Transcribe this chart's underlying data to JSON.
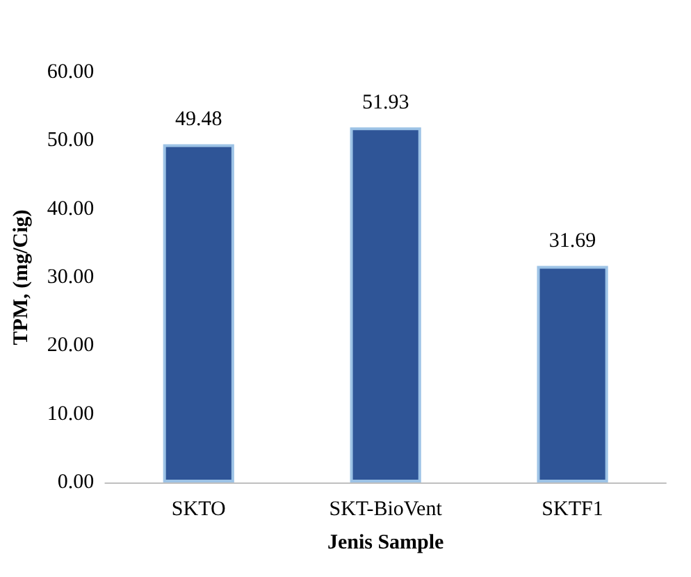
{
  "chart_data": {
    "type": "bar",
    "xlabel": "Jenis Sample",
    "ylabel": "TPM, (mg/Cig)",
    "categories": [
      "SKTO",
      "SKT-BioVent",
      "SKTF1"
    ],
    "values": [
      49.48,
      51.93,
      31.69
    ],
    "color": "#2f5597",
    "ylim": [
      0,
      60
    ],
    "yticks": [
      {
        "value": 0,
        "label": "0.00"
      },
      {
        "value": 10,
        "label": "10.00"
      },
      {
        "value": 20,
        "label": "20.00"
      },
      {
        "value": 30,
        "label": "30.00"
      },
      {
        "value": 40,
        "label": "40.00"
      },
      {
        "value": 50,
        "label": "50.00"
      },
      {
        "value": 60,
        "label": "60.00"
      }
    ],
    "value_labels": [
      "49.48",
      "51.93",
      "31.69"
    ],
    "grid": false
  }
}
